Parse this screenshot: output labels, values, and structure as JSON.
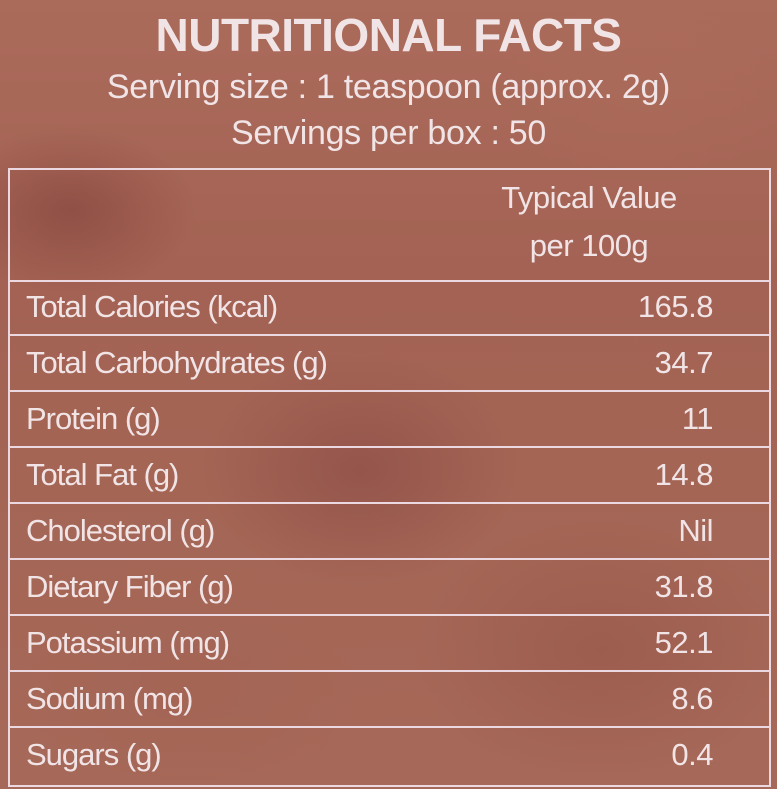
{
  "label": {
    "title": "NUTRITIONAL FACTS",
    "serving_size": "Serving size : 1 teaspoon (approx. 2g)",
    "servings_per_box": "Servings per box : 50"
  },
  "table": {
    "header_line1": "Typical Value",
    "header_line2": "per 100g",
    "rows": [
      {
        "label": "Total Calories (kcal)",
        "value": "165.8"
      },
      {
        "label": "Total Carbohydrates (g)",
        "value": "34.7"
      },
      {
        "label": "Protein (g)",
        "value": "11"
      },
      {
        "label": "Total Fat (g)",
        "value": "14.8"
      },
      {
        "label": "Cholesterol (g)",
        "value": "Nil"
      },
      {
        "label": "Dietary Fiber (g)",
        "value": "31.8"
      },
      {
        "label": "Potassium (mg)",
        "value": "52.1"
      },
      {
        "label": "Sodium (mg)",
        "value": "8.6"
      },
      {
        "label": "Sugars (g)",
        "value": "0.4"
      }
    ]
  }
}
